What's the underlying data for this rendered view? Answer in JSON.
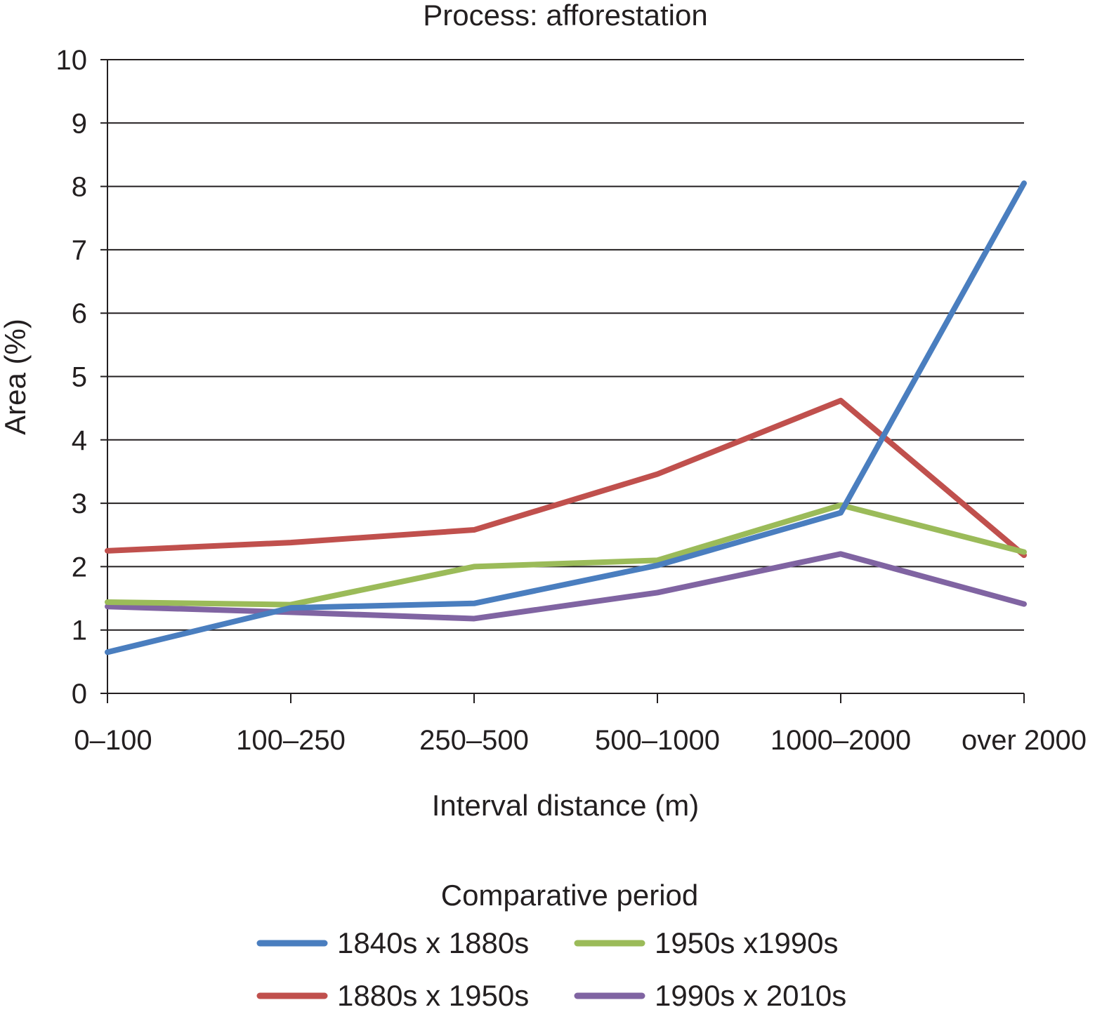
{
  "chart_data": {
    "type": "line",
    "title": "Process: afforestation",
    "xlabel": "Interval distance (m)",
    "ylabel": "Area (%)",
    "ylim": [
      0,
      10
    ],
    "yticks": [
      "0",
      "1",
      "2",
      "3",
      "4",
      "5",
      "6",
      "7",
      "8",
      "9",
      "10"
    ],
    "grid": true,
    "categories": [
      "0–100",
      "100–250",
      "250–500",
      "500–1000",
      "1000–2000",
      "over 2000"
    ],
    "legend_title": "Comparative period",
    "legend_position": "bottom",
    "series": [
      {
        "name": "1840s x 1880s",
        "color": "#4a7ebf",
        "values": [
          0.65,
          1.35,
          1.42,
          2.02,
          2.85,
          8.05
        ]
      },
      {
        "name": "1950s x1990s",
        "color": "#9bbb59",
        "values": [
          1.44,
          1.4,
          2.0,
          2.1,
          2.97,
          2.23
        ]
      },
      {
        "name": "1880s x 1950s",
        "color": "#c0504d",
        "values": [
          2.25,
          2.38,
          2.58,
          3.46,
          4.62,
          2.18
        ]
      },
      {
        "name": "1990s x 2010s",
        "color": "#8064a2",
        "values": [
          1.37,
          1.28,
          1.18,
          1.59,
          2.2,
          1.41
        ]
      }
    ]
  }
}
